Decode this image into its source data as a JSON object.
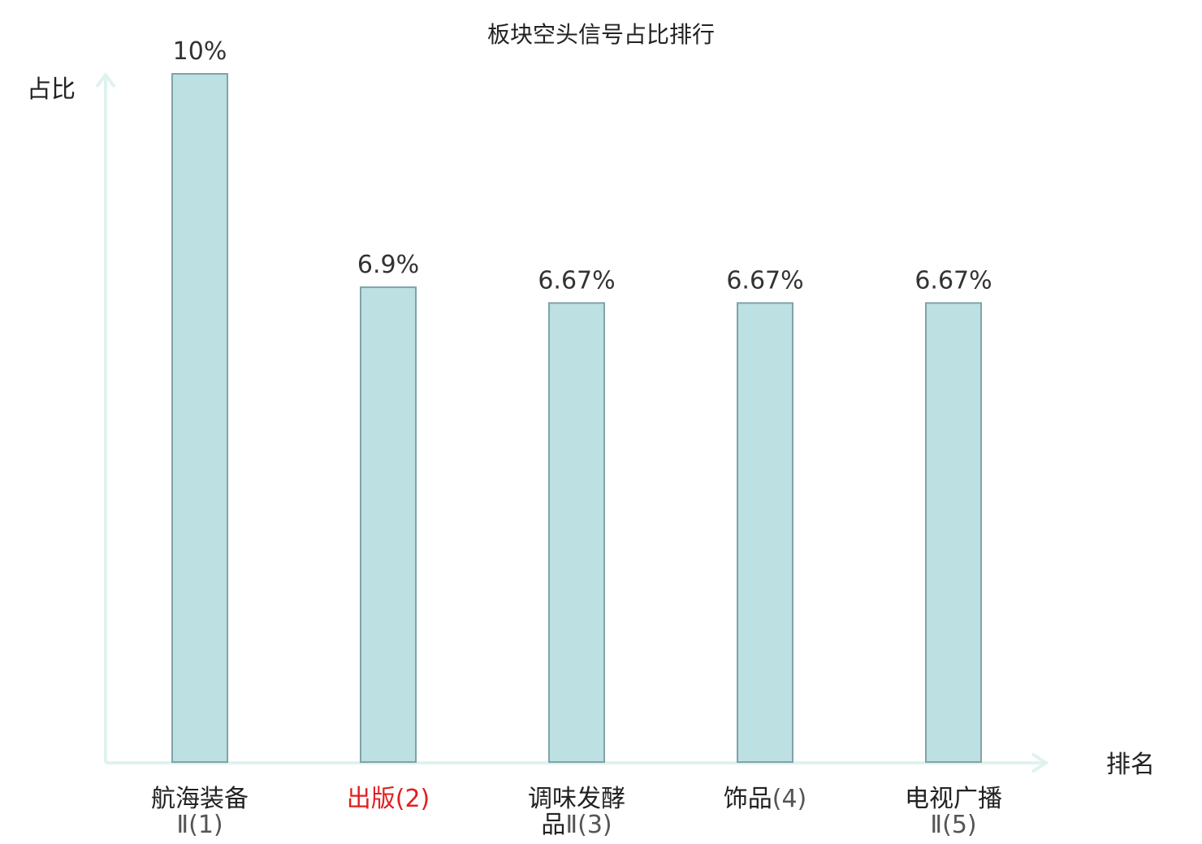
{
  "chart_data": {
    "type": "bar",
    "title": "板块空头信号占比排行",
    "ylabel": "占比",
    "xlabel": "排名",
    "ylim": [
      0,
      10
    ],
    "grid": false,
    "categories": [
      {
        "lines": [
          "航海装备",
          "Ⅱ(1)"
        ],
        "highlight": false
      },
      {
        "lines": [
          "出版(2)"
        ],
        "highlight": true
      },
      {
        "lines": [
          "调味发酵",
          "品Ⅱ(3)"
        ],
        "highlight": false
      },
      {
        "lines": [
          "饰品(4)"
        ],
        "highlight": false
      },
      {
        "lines": [
          "电视广播",
          "Ⅱ(5)"
        ],
        "highlight": false
      }
    ],
    "values": [
      10,
      6.9,
      6.67,
      6.67,
      6.67
    ],
    "value_labels": [
      "10%",
      "6.9%",
      "6.67%",
      "6.67%",
      "6.67%"
    ],
    "colors": {
      "bar_fill": "#bde0e2",
      "bar_stroke": "#7fa3a6",
      "axis": "#dff2ef",
      "highlight_text": "#e02020"
    }
  }
}
